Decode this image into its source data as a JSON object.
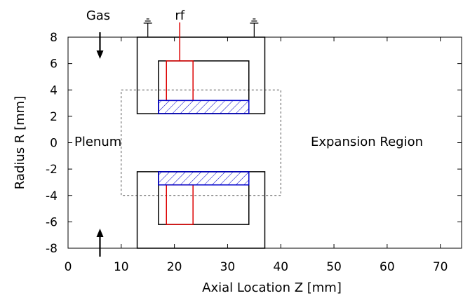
{
  "chart_data": {
    "type": "diagram",
    "xlabel": "Axial Location Z [mm]",
    "ylabel": "Radius R [mm]",
    "xlim": [
      0,
      74
    ],
    "ylim": [
      -8,
      8
    ],
    "xticks": [
      "0",
      "10",
      "20",
      "30",
      "40",
      "50",
      "60",
      "70"
    ],
    "yticks": [
      "8",
      "6",
      "4",
      "2",
      "0",
      "-2",
      "-4",
      "-6",
      "-8"
    ],
    "annotations": {
      "gas": "Gas",
      "rf": "rf",
      "plenum": "Plenum",
      "expansion": "Expansion Region"
    },
    "colors": {
      "electrode": "#dd0000",
      "hatch": "#0000cc",
      "frame": "#000000",
      "dashed": "#555555"
    },
    "geometry_data_units": {
      "outer_housing_z": [
        13,
        37
      ],
      "outer_housing_r": [
        2.2,
        8
      ],
      "inner_housing_z": [
        17,
        34
      ],
      "inner_housing_r": [
        2.2,
        6.2
      ],
      "electrode_z": [
        18.5,
        23.5
      ],
      "electrode_r": [
        3.2,
        6.2
      ],
      "hatched_z": [
        17,
        34
      ],
      "hatched_r": [
        2.2,
        3.2
      ],
      "dashed_box_z": [
        10,
        40
      ],
      "dashed_box_r": [
        -4,
        4
      ],
      "ground_z": [
        15,
        35
      ]
    }
  }
}
